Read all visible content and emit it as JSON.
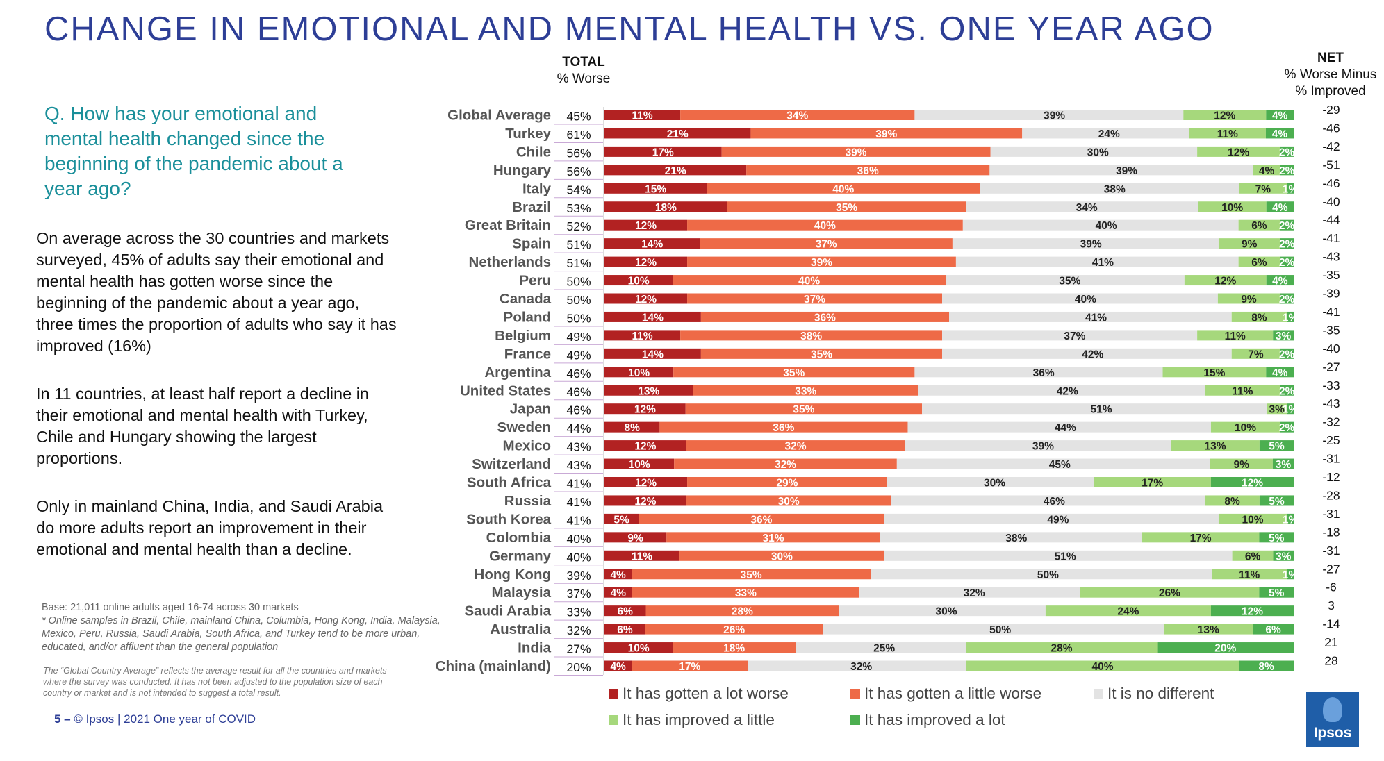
{
  "title": "CHANGE IN EMOTIONAL AND MENTAL HEALTH VS. ONE YEAR AGO",
  "question": "Q. How has your emotional and mental health changed since the beginning of the pandemic about a year ago?",
  "paragraphs": {
    "p1": "On average across the 30 countries and markets surveyed, 45% of adults say their emotional and mental health has gotten worse since the beginning of the pandemic about a year ago, three times the proportion of adults who say it has improved (16%)",
    "p2": "In 11 countries, at least half report a decline in their emotional and mental health with Turkey, Chile and Hungary showing the largest proportions.",
    "p3": "Only in mainland China, India, and Saudi Arabia do more adults report an improvement in their emotional and mental health than a decline."
  },
  "base_note": {
    "base": "Base: 21,011 online adults aged 16-74 across 30 markets",
    "online": "* Online samples in Brazil, Chile, mainland China, Columbia, Hong Kong, India, Malaysia, Mexico, Peru, Russia, Saudi Arabia, South Africa, and Turkey tend to be more urban, educated, and/or affluent than the general population"
  },
  "avg_note": "The “Global Country Average” reflects the average result for all the countries and markets where the survey was conducted. It has not been adjusted to the population size of each country or market and is not intended to suggest a total result.",
  "footer": {
    "page": "5 –",
    "text": "© Ipsos | 2021 One year of COVID"
  },
  "headers": {
    "total_title": "TOTAL",
    "total_sub": "% Worse",
    "net_title": "NET",
    "net_sub1": "% Worse Minus",
    "net_sub2": "% Improved"
  },
  "logo": {
    "text": "Ipsos"
  },
  "colors": {
    "lot_worse": "#b22222",
    "little_worse": "#ee6a47",
    "no_different": "#e3e3e3",
    "improved_little": "#a6d87c",
    "improved_lot": "#4caf50"
  },
  "chart_data": {
    "type": "bar",
    "orientation": "horizontal",
    "stacked": true,
    "percent_stacked": true,
    "categories": [
      "Global Average",
      "Turkey",
      "Chile",
      "Hungary",
      "Italy",
      "Brazil",
      "Great Britain",
      "Spain",
      "Netherlands",
      "Peru",
      "Canada",
      "Poland",
      "Belgium",
      "France",
      "Argentina",
      "United States",
      "Japan",
      "Sweden",
      "Mexico",
      "Switzerland",
      "South Africa",
      "Russia",
      "South Korea",
      "Colombia",
      "Germany",
      "Hong Kong",
      "Malaysia",
      "Saudi Arabia",
      "Australia",
      "India",
      "China (mainland)"
    ],
    "series": [
      {
        "name": "It has gotten a lot worse",
        "values": [
          11,
          21,
          17,
          21,
          15,
          18,
          12,
          14,
          12,
          10,
          12,
          14,
          11,
          14,
          10,
          13,
          12,
          8,
          12,
          10,
          12,
          12,
          5,
          9,
          11,
          4,
          4,
          6,
          6,
          10,
          4
        ]
      },
      {
        "name": "It has gotten a little worse",
        "values": [
          34,
          39,
          39,
          36,
          40,
          35,
          40,
          37,
          39,
          40,
          37,
          36,
          38,
          35,
          35,
          33,
          35,
          36,
          32,
          32,
          29,
          30,
          36,
          31,
          30,
          35,
          33,
          28,
          26,
          18,
          17
        ]
      },
      {
        "name": "It is no different",
        "values": [
          39,
          24,
          30,
          39,
          38,
          34,
          40,
          39,
          41,
          35,
          40,
          41,
          37,
          42,
          36,
          42,
          51,
          44,
          39,
          45,
          30,
          46,
          49,
          38,
          51,
          50,
          32,
          30,
          50,
          25,
          32
        ]
      },
      {
        "name": "It has improved a little",
        "values": [
          12,
          11,
          12,
          4,
          7,
          10,
          6,
          9,
          6,
          12,
          9,
          8,
          11,
          7,
          15,
          11,
          3,
          10,
          13,
          9,
          17,
          8,
          10,
          17,
          6,
          11,
          26,
          24,
          13,
          28,
          40
        ]
      },
      {
        "name": "It has improved a lot",
        "values": [
          4,
          4,
          2,
          2,
          1,
          4,
          2,
          2,
          2,
          4,
          2,
          1,
          3,
          2,
          4,
          2,
          1,
          2,
          5,
          3,
          12,
          5,
          1,
          5,
          3,
          1,
          5,
          12,
          6,
          20,
          8
        ]
      }
    ],
    "total_worse": [
      "45%",
      "61%",
      "56%",
      "56%",
      "54%",
      "53%",
      "52%",
      "51%",
      "51%",
      "50%",
      "50%",
      "50%",
      "49%",
      "49%",
      "46%",
      "46%",
      "46%",
      "44%",
      "43%",
      "43%",
      "41%",
      "41%",
      "41%",
      "40%",
      "40%",
      "39%",
      "37%",
      "33%",
      "32%",
      "27%",
      "20%"
    ],
    "net": [
      "-29",
      "-46",
      "-42",
      "-51",
      "-46",
      "-40",
      "-44",
      "-41",
      "-43",
      "-35",
      "-39",
      "-41",
      "-35",
      "-40",
      "-27",
      "-33",
      "-43",
      "-32",
      "-25",
      "-31",
      "-12",
      "-28",
      "-31",
      "-18",
      "-31",
      "-27",
      "-6",
      "3",
      "-14",
      "21",
      "28"
    ],
    "legend": "bottom"
  }
}
